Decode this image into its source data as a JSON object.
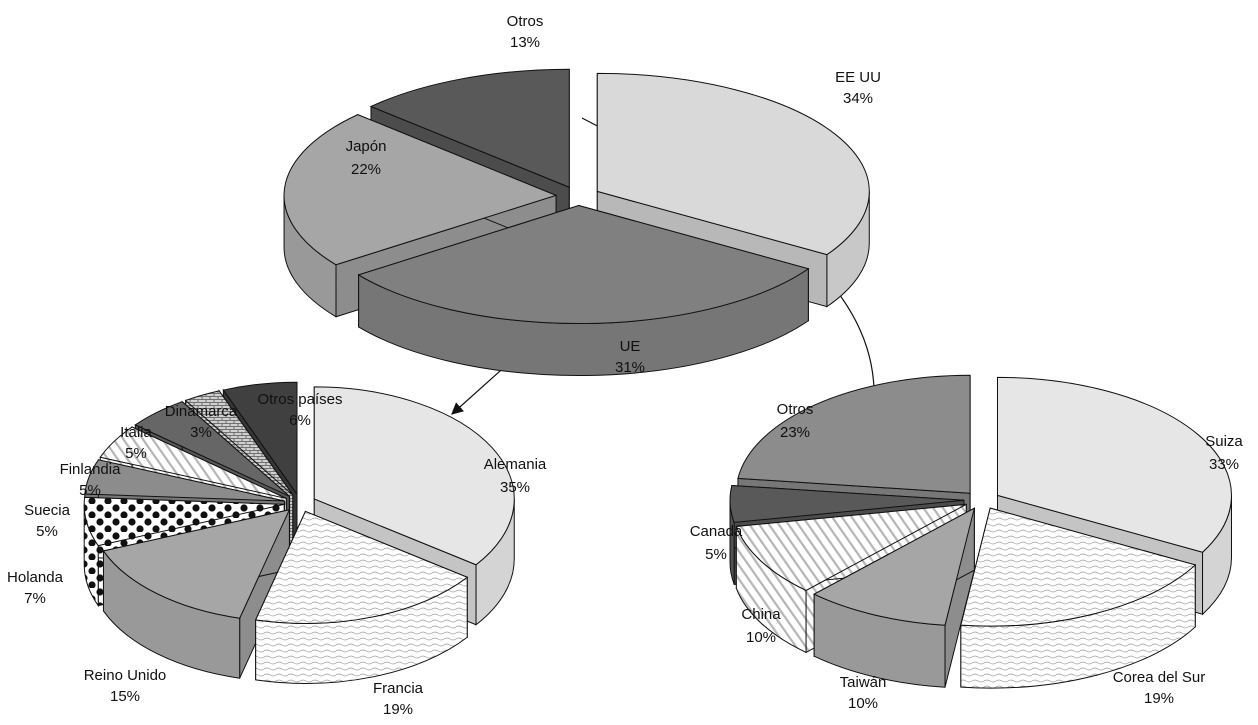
{
  "chart_data": [
    {
      "type": "pie",
      "categories": [
        "EE UU",
        "UE",
        "Japón",
        "Otros"
      ],
      "values": [
        34,
        31,
        22,
        13
      ],
      "labels": [
        "34%",
        "31%",
        "22%",
        "13%"
      ],
      "colors": [
        "#d9d9d9",
        "#808080",
        "#a6a6a6",
        "#595959"
      ],
      "exploded": true,
      "three_d": true
    },
    {
      "type": "pie",
      "categories": [
        "Alemania",
        "Francia",
        "Reino Unido",
        "Holanda",
        "Suecia",
        "Finlandia",
        "Italia",
        "Dinamarca",
        "Otros países"
      ],
      "values": [
        35,
        19,
        15,
        7,
        5,
        5,
        5,
        3,
        6
      ],
      "labels": [
        "35%",
        "19%",
        "15%",
        "7%",
        "5%",
        "5%",
        "5%",
        "3%",
        "6%"
      ],
      "colors": [
        "#e6e6e6",
        "#ffffff",
        "#a6a6a6",
        "#ffffff",
        "#8c8c8c",
        "#ffffff",
        "#666666",
        "#cccccc",
        "#404040"
      ],
      "patterns": [
        "solid",
        "wavy",
        "solid",
        "dots",
        "solid",
        "diagonal",
        "solid",
        "brick",
        "solid"
      ],
      "exploded": true,
      "three_d": true
    },
    {
      "type": "pie",
      "categories": [
        "Suiza",
        "Corea del Sur",
        "Taiwán",
        "China",
        "Canadá",
        "Otros"
      ],
      "values": [
        33,
        19,
        10,
        10,
        5,
        23
      ],
      "labels": [
        "33%",
        "19%",
        "10%",
        "10%",
        "5%",
        "23%"
      ],
      "colors": [
        "#e6e6e6",
        "#ffffff",
        "#a6a6a6",
        "#ffffff",
        "#595959",
        "#8c8c8c"
      ],
      "patterns": [
        "solid",
        "wavy",
        "solid",
        "diagonal",
        "solid",
        "solid"
      ],
      "exploded": true,
      "three_d": true
    }
  ]
}
